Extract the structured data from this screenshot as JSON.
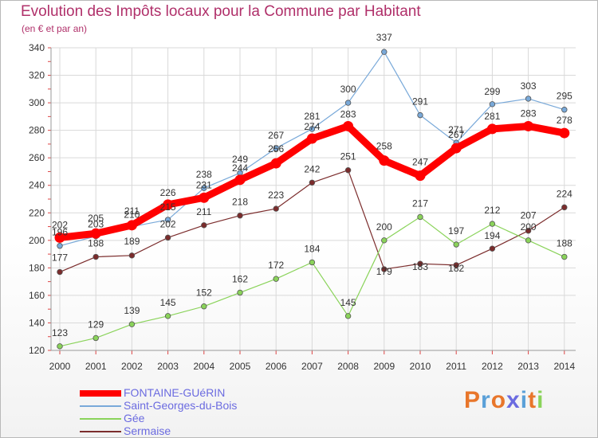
{
  "chart_data": {
    "type": "line",
    "title": "Evolution des Impôts locaux pour la Commune par Habitant",
    "subtitle": "(en € et par an)",
    "xlabel": "",
    "ylabel": "",
    "x": [
      2000,
      2001,
      2002,
      2003,
      2004,
      2005,
      2006,
      2007,
      2008,
      2009,
      2010,
      2011,
      2012,
      2013,
      2014
    ],
    "ylim": [
      120,
      340
    ],
    "yticks": [
      120,
      140,
      160,
      180,
      200,
      220,
      240,
      260,
      280,
      300,
      320,
      340
    ],
    "grid": true,
    "legend_position": "bottom-left",
    "series": [
      {
        "name": "FONTAINE-GUéRIN",
        "color": "#ff0000",
        "values": [
          202,
          205,
          211,
          226,
          231,
          244,
          256,
          274,
          283,
          258,
          247,
          267,
          281,
          283,
          278
        ],
        "labels": [
          "202",
          "205",
          "211",
          "226",
          "231",
          "244",
          "256",
          "274",
          "283",
          "258",
          "247",
          "267",
          "281",
          "283",
          "278"
        ]
      },
      {
        "name": "Saint-Georges-du-Bois",
        "color": "#79a9d9",
        "values": [
          196,
          203,
          210,
          215,
          238,
          249,
          267,
          281,
          300,
          337,
          291,
          271,
          299,
          303,
          295
        ],
        "labels": [
          "196",
          "203",
          "210",
          "215",
          "238",
          "249",
          "267",
          "281",
          "300",
          "337",
          "291",
          "271",
          "299",
          "303",
          "295"
        ]
      },
      {
        "name": "Gée",
        "color": "#8ad35a",
        "values": [
          123,
          129,
          139,
          145,
          152,
          162,
          172,
          184,
          145,
          200,
          217,
          197,
          212,
          200,
          188
        ],
        "labels": [
          "123",
          "129",
          "139",
          "145",
          "152",
          "162",
          "172",
          "184",
          "145",
          "200",
          "217",
          "197",
          "212",
          "200",
          "188"
        ]
      },
      {
        "name": "Sermaise",
        "color": "#7b2c2c",
        "values": [
          177,
          188,
          189,
          202,
          211,
          218,
          223,
          242,
          251,
          179,
          183,
          182,
          194,
          207,
          224
        ],
        "labels": [
          "177",
          "188",
          "189",
          "202",
          "211",
          "218",
          "223",
          "242",
          "251",
          "179",
          "183",
          "182",
          "194",
          "207",
          "224"
        ]
      }
    ]
  },
  "brand": {
    "text": "Proxiti",
    "colors": [
      "#e8762b",
      "#5aa0d8",
      "#e8762b",
      "#6b6be0",
      "#5aa0d8",
      "#e8762b",
      "#8ad35a"
    ]
  }
}
